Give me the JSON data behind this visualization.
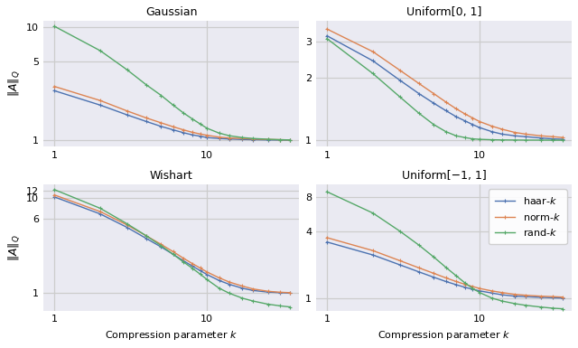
{
  "titles": [
    "Gaussian",
    "Uniform[0, 1]",
    "Wishart",
    "Uniform[−1, 1]"
  ],
  "ylabel": "$\\|A\\|_Q$",
  "xlabel": "Compression parameter $k$",
  "legend_labels": [
    "haar-$k$",
    "norm-$k$",
    "rand-$k$"
  ],
  "line_colors": [
    "#4c72b0",
    "#dd8452",
    "#55a868"
  ],
  "marker": "+",
  "markersize": 3.5,
  "linewidth": 1.0,
  "subplot_data": {
    "Gaussian": {
      "haar": {
        "x": [
          1,
          2,
          3,
          4,
          5,
          6,
          7,
          8,
          9,
          10,
          12,
          14,
          17,
          20,
          25,
          30,
          35
        ],
        "y": [
          2.75,
          2.05,
          1.68,
          1.47,
          1.33,
          1.24,
          1.17,
          1.12,
          1.09,
          1.06,
          1.04,
          1.03,
          1.02,
          1.015,
          1.01,
          1.007,
          1.005
        ]
      },
      "norm": {
        "x": [
          1,
          2,
          3,
          4,
          5,
          6,
          7,
          8,
          9,
          10,
          12,
          14,
          17,
          20,
          25,
          30,
          35
        ],
        "y": [
          3.0,
          2.25,
          1.82,
          1.58,
          1.43,
          1.32,
          1.24,
          1.18,
          1.14,
          1.11,
          1.07,
          1.05,
          1.04,
          1.03,
          1.02,
          1.015,
          1.01
        ]
      },
      "rand": {
        "x": [
          1,
          2,
          3,
          4,
          5,
          6,
          7,
          8,
          9,
          10,
          12,
          14,
          17,
          20,
          25,
          30,
          35
        ],
        "y": [
          10.2,
          6.2,
          4.2,
          3.1,
          2.5,
          2.05,
          1.75,
          1.55,
          1.4,
          1.28,
          1.16,
          1.1,
          1.06,
          1.04,
          1.025,
          1.015,
          1.01
        ]
      },
      "ylim": [
        0.88,
        11.5
      ],
      "yticks": [
        1,
        5,
        10
      ],
      "hlines": [
        1,
        5,
        10
      ]
    },
    "Uniform[0, 1]": {
      "haar": {
        "x": [
          1,
          2,
          3,
          4,
          5,
          6,
          7,
          8,
          9,
          10,
          12,
          14,
          17,
          20,
          25,
          30,
          35
        ],
        "y": [
          3.2,
          2.42,
          1.95,
          1.68,
          1.51,
          1.39,
          1.3,
          1.24,
          1.19,
          1.15,
          1.1,
          1.07,
          1.05,
          1.04,
          1.025,
          1.015,
          1.01
        ]
      },
      "norm": {
        "x": [
          1,
          2,
          3,
          4,
          5,
          6,
          7,
          8,
          9,
          10,
          12,
          14,
          17,
          20,
          25,
          30,
          35
        ],
        "y": [
          3.45,
          2.68,
          2.18,
          1.88,
          1.68,
          1.53,
          1.42,
          1.34,
          1.28,
          1.23,
          1.17,
          1.13,
          1.09,
          1.07,
          1.05,
          1.04,
          1.03
        ]
      },
      "rand": {
        "x": [
          1,
          2,
          3,
          4,
          5,
          6,
          7,
          8,
          9,
          10,
          12,
          14,
          17,
          20,
          25,
          30,
          35
        ],
        "y": [
          3.1,
          2.1,
          1.62,
          1.35,
          1.19,
          1.1,
          1.05,
          1.03,
          1.015,
          1.01,
          1.005,
          1.003,
          1.002,
          1.001,
          1.001,
          1.0,
          1.0
        ]
      },
      "ylim": [
        0.93,
        3.8
      ],
      "yticks": [
        1,
        2,
        3
      ],
      "hlines": [
        1,
        2,
        3
      ]
    },
    "Wishart": {
      "haar": {
        "x": [
          1,
          2,
          3,
          4,
          5,
          6,
          7,
          8,
          9,
          10,
          12,
          14,
          17,
          20,
          25,
          30,
          35
        ],
        "y": [
          10.3,
          6.8,
          4.9,
          3.75,
          3.05,
          2.55,
          2.18,
          1.92,
          1.72,
          1.56,
          1.35,
          1.23,
          1.12,
          1.06,
          1.02,
          1.005,
          0.995
        ]
      },
      "norm": {
        "x": [
          1,
          2,
          3,
          4,
          5,
          6,
          7,
          8,
          9,
          10,
          12,
          14,
          17,
          20,
          25,
          30,
          35
        ],
        "y": [
          10.8,
          7.2,
          5.2,
          4.0,
          3.25,
          2.72,
          2.32,
          2.04,
          1.83,
          1.66,
          1.44,
          1.3,
          1.18,
          1.1,
          1.04,
          1.015,
          1.005
        ]
      },
      "rand": {
        "x": [
          1,
          2,
          3,
          4,
          5,
          6,
          7,
          8,
          9,
          10,
          12,
          14,
          17,
          20,
          25,
          30,
          35
        ],
        "y": [
          12.3,
          7.8,
          5.35,
          4.0,
          3.15,
          2.55,
          2.12,
          1.82,
          1.58,
          1.38,
          1.12,
          0.99,
          0.88,
          0.82,
          0.76,
          0.73,
          0.71
        ]
      },
      "ylim": [
        0.65,
        14.0
      ],
      "yticks": [
        1,
        6,
        10,
        12
      ],
      "hlines": [
        1,
        6,
        10,
        12
      ]
    },
    "Uniform[−1, 1]": {
      "haar": {
        "x": [
          1,
          2,
          3,
          4,
          5,
          6,
          7,
          8,
          9,
          10,
          12,
          14,
          17,
          20,
          25,
          30,
          35
        ],
        "y": [
          3.2,
          2.45,
          2.0,
          1.73,
          1.55,
          1.42,
          1.33,
          1.26,
          1.21,
          1.17,
          1.12,
          1.08,
          1.05,
          1.04,
          1.025,
          1.015,
          1.01
        ]
      },
      "norm": {
        "x": [
          1,
          2,
          3,
          4,
          5,
          6,
          7,
          8,
          9,
          10,
          12,
          14,
          17,
          20,
          25,
          30,
          35
        ],
        "y": [
          3.5,
          2.68,
          2.18,
          1.88,
          1.68,
          1.53,
          1.42,
          1.34,
          1.28,
          1.23,
          1.17,
          1.13,
          1.09,
          1.07,
          1.05,
          1.04,
          1.03
        ]
      },
      "rand": {
        "x": [
          1,
          2,
          3,
          4,
          5,
          6,
          7,
          8,
          9,
          10,
          12,
          14,
          17,
          20,
          25,
          30,
          35
        ],
        "y": [
          9.0,
          5.8,
          4.0,
          3.0,
          2.35,
          1.9,
          1.6,
          1.38,
          1.23,
          1.13,
          1.01,
          0.95,
          0.9,
          0.87,
          0.84,
          0.82,
          0.81
        ]
      },
      "ylim": [
        0.78,
        10.5
      ],
      "yticks": [
        1,
        4,
        8
      ],
      "hlines": [
        1,
        4,
        8
      ]
    }
  },
  "vline_x": [
    1,
    10
  ],
  "hline_color": "#cccccc",
  "vline_color": "#cccccc",
  "grid_linewidth": 0.9,
  "bg_color": "#eaeaf2",
  "legend_subplot": "Uniform[−1, 1]",
  "legend_loc": "upper right"
}
